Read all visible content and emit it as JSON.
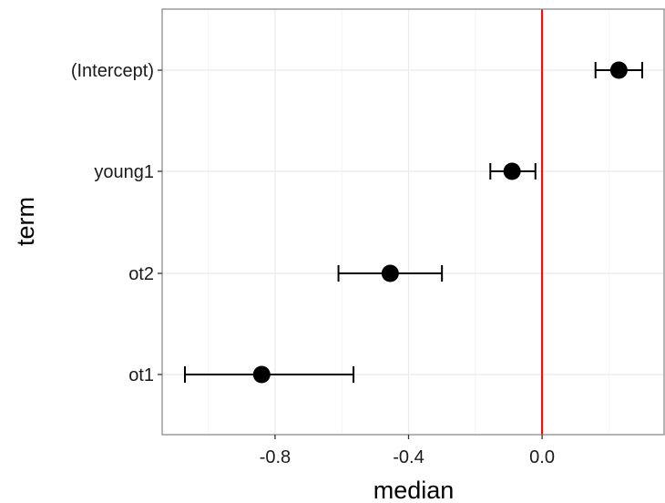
{
  "chart_data": {
    "type": "scatter",
    "subtype": "dot-and-whisker",
    "title": "",
    "xlabel": "median",
    "ylabel": "term",
    "xlim": [
      -1.07,
      0.33
    ],
    "x_ticks": [
      -0.8,
      -0.4,
      0.0
    ],
    "x_tick_labels": [
      "-0.8",
      "-0.4",
      "0.0"
    ],
    "categories": [
      "(Intercept)",
      "young1",
      "ot2",
      "ot1"
    ],
    "points": [
      {
        "term": "(Intercept)",
        "median": 0.23,
        "lower": 0.16,
        "upper": 0.3
      },
      {
        "term": "young1",
        "median": -0.09,
        "lower": -0.155,
        "upper": -0.02
      },
      {
        "term": "ot2",
        "median": -0.455,
        "lower": -0.61,
        "upper": -0.3
      },
      {
        "term": "ot1",
        "median": -0.84,
        "lower": -1.07,
        "upper": -0.565
      }
    ],
    "reference_line": {
      "x": 0.0,
      "color": "#ee1111"
    },
    "grid": true,
    "colors": {
      "points": "#000000",
      "gridlines": "#ebebeb",
      "panel_border": "#8c8c8c"
    }
  }
}
